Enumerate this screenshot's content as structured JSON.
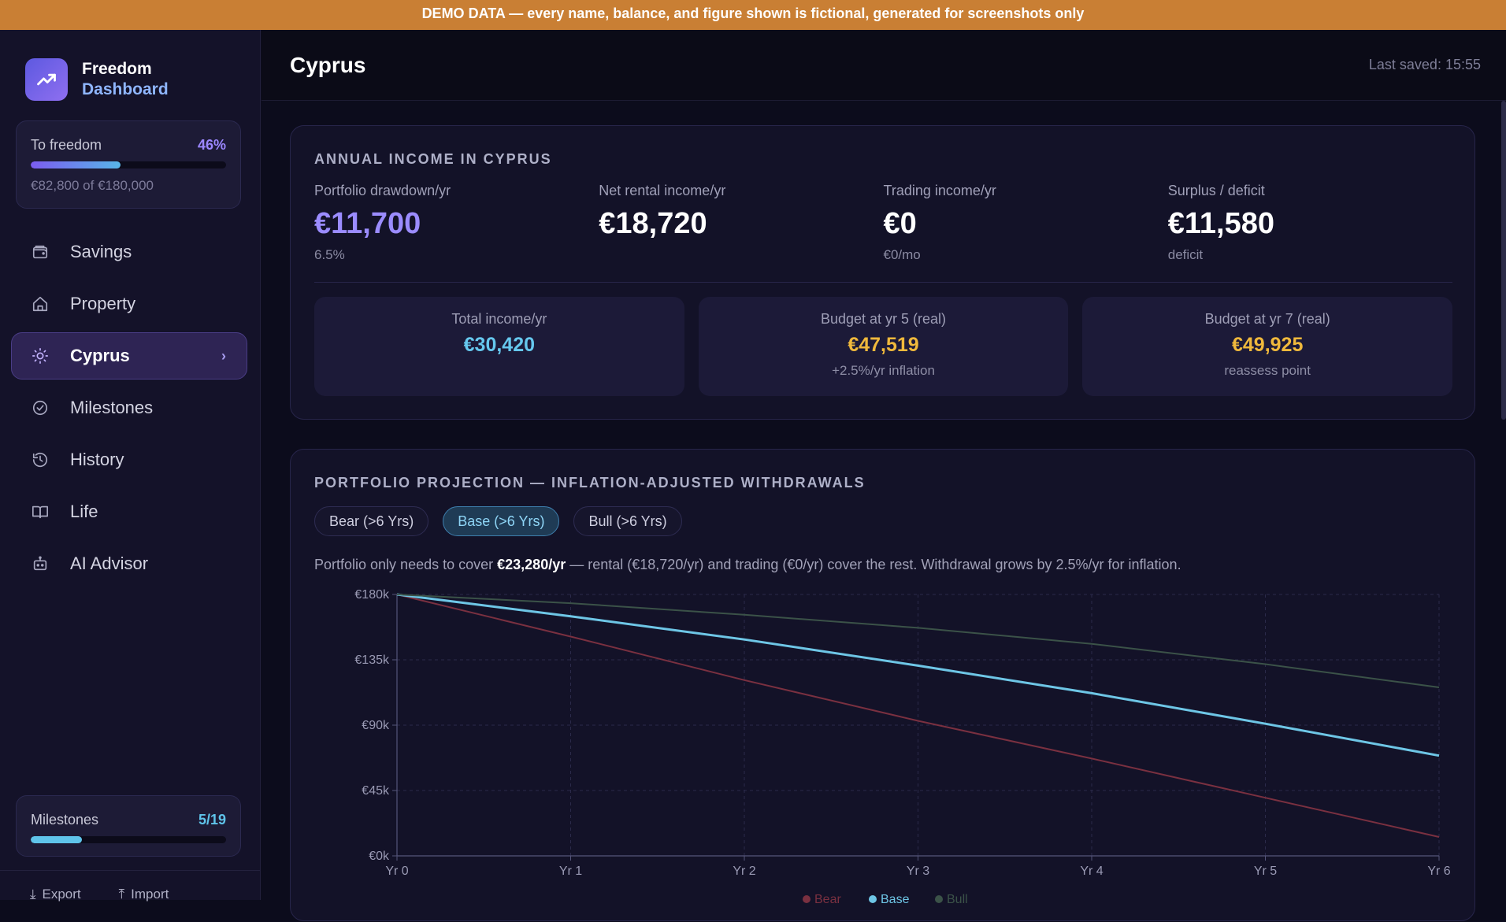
{
  "banner": "DEMO DATA — every name, balance, and figure shown is fictional, generated for screenshots only",
  "brand": {
    "line1": "Freedom",
    "line2": "Dashboard"
  },
  "freedom": {
    "label": "To freedom",
    "percent": "46%",
    "progress": 0.46,
    "sub": "€82,800 of €180,000"
  },
  "nav": [
    {
      "label": "Savings",
      "icon": "wallet-icon"
    },
    {
      "label": "Property",
      "icon": "home-icon"
    },
    {
      "label": "Cyprus",
      "icon": "sun-icon",
      "active": true
    },
    {
      "label": "Milestones",
      "icon": "check-circle-icon"
    },
    {
      "label": "History",
      "icon": "history-icon"
    },
    {
      "label": "Life",
      "icon": "book-icon"
    },
    {
      "label": "AI Advisor",
      "icon": "robot-icon"
    }
  ],
  "milestones": {
    "label": "Milestones",
    "count": "5/19",
    "progress": 0.263
  },
  "footer": {
    "export": "Export",
    "import": "Import"
  },
  "header": {
    "title": "Cyprus",
    "saved": "Last saved: 15:55"
  },
  "income": {
    "title": "ANNUAL INCOME IN CYPRUS",
    "metrics": [
      {
        "label": "Portfolio drawdown/yr",
        "value": "€11,700",
        "sub": "6.5%",
        "color": "#9b8cff"
      },
      {
        "label": "Net rental income/yr",
        "value": "€18,720",
        "sub": "",
        "color": "#ffffff"
      },
      {
        "label": "Trading income/yr",
        "value": "€0",
        "sub": "€0/mo",
        "color": "#ffffff"
      },
      {
        "label": "Surplus / deficit",
        "value": "€11,580",
        "sub": "deficit",
        "color": "#ffffff"
      }
    ],
    "boxes": [
      {
        "label": "Total income/yr",
        "value": "€30,420",
        "sub": "",
        "color": "#66c8ee"
      },
      {
        "label": "Budget at yr 5 (real)",
        "value": "€47,519",
        "sub": "+2.5%/yr inflation",
        "color": "#f0b93c"
      },
      {
        "label": "Budget at yr 7 (real)",
        "value": "€49,925",
        "sub": "reassess point",
        "color": "#f0b93c"
      }
    ]
  },
  "projection": {
    "title": "PORTFOLIO PROJECTION — INFLATION-ADJUSTED WITHDRAWALS",
    "tabs": [
      {
        "label": "Bear (>6 Yrs)",
        "active": false
      },
      {
        "label": "Base (>6 Yrs)",
        "active": true
      },
      {
        "label": "Bull (>6 Yrs)",
        "active": false
      }
    ],
    "note_pre": "Portfolio only needs to cover ",
    "note_bold": "€23,280/yr",
    "note_post": " — rental (€18,720/yr) and trading (€0/yr) cover the rest. Withdrawal grows by 2.5%/yr for inflation."
  },
  "chart_data": {
    "type": "line",
    "x": [
      "Yr 0",
      "Yr 1",
      "Yr 2",
      "Yr 3",
      "Yr 4",
      "Yr 5",
      "Yr 6"
    ],
    "y_ticks": [
      "€0k",
      "€45k",
      "€90k",
      "€135k",
      "€180k"
    ],
    "ylim": [
      0,
      180
    ],
    "grid": true,
    "series": [
      {
        "name": "Bear",
        "color": "#7a3040",
        "values": [
          180,
          151,
          121,
          93,
          67,
          40,
          13
        ]
      },
      {
        "name": "Base",
        "color": "#6ec6e6",
        "values": [
          180,
          165,
          149,
          131,
          112,
          91,
          69
        ]
      },
      {
        "name": "Bull",
        "color": "#3b5248",
        "values": [
          180,
          174,
          166,
          157,
          146,
          132,
          116
        ]
      }
    ]
  }
}
